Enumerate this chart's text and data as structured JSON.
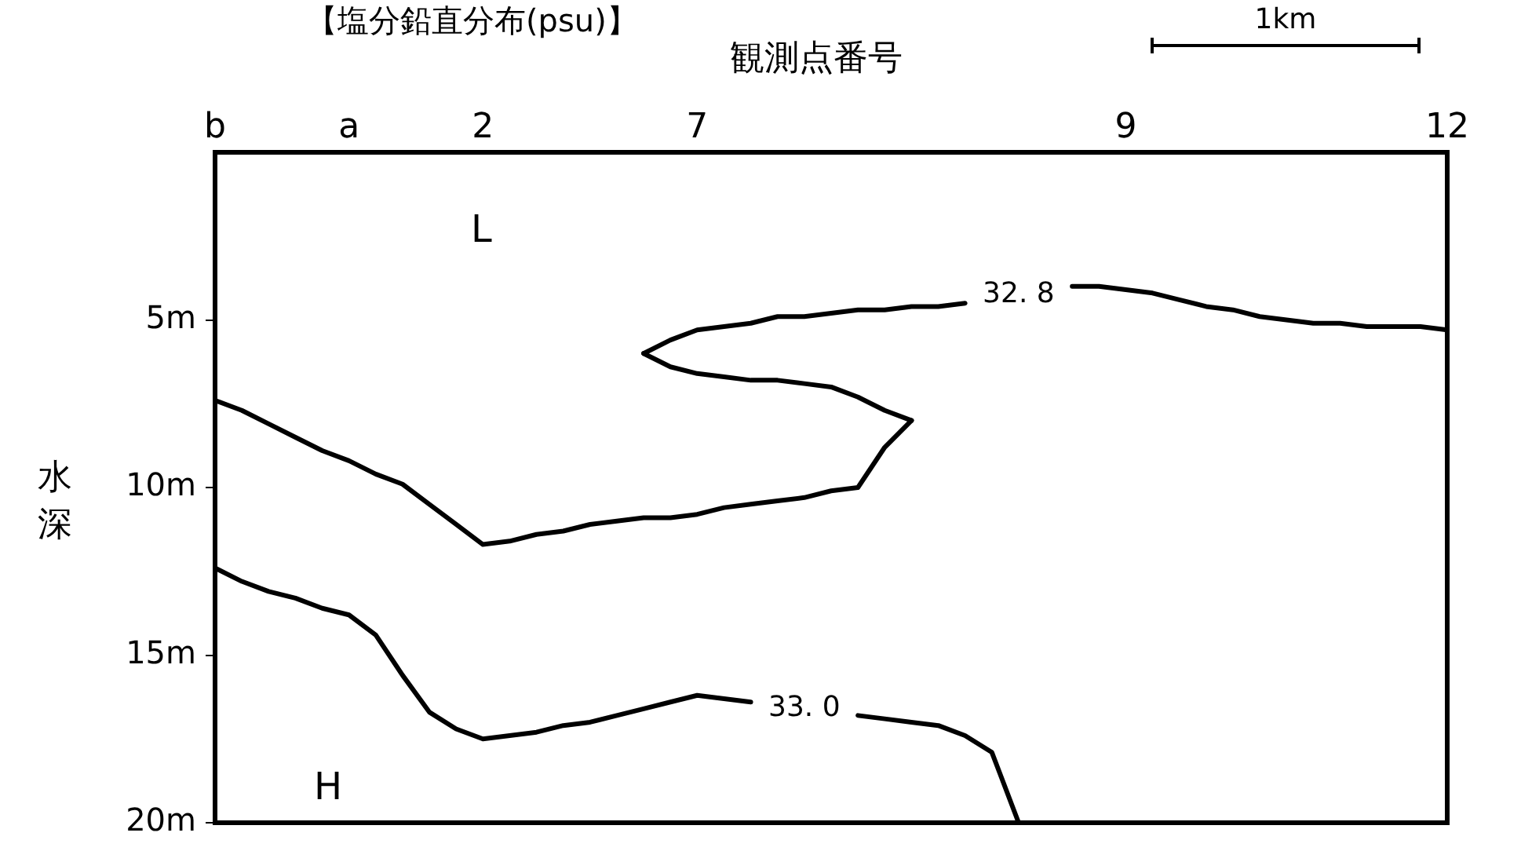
{
  "chart_data": {
    "type": "line",
    "title": "【塩分鉛直分布(psu)】",
    "xlabel": "観測点番号",
    "ylabel": "水深",
    "categories": [
      "b",
      null,
      null,
      null,
      null,
      "a",
      null,
      null,
      null,
      null,
      "2",
      null,
      null,
      null,
      null,
      null,
      null,
      null,
      "7",
      null,
      null,
      null,
      null,
      null,
      null,
      null,
      null,
      null,
      null,
      null,
      null,
      null,
      null,
      null,
      "9",
      null,
      null,
      null,
      null,
      null,
      null,
      null,
      null,
      null,
      null,
      null,
      "12"
    ],
    "ylim": [
      20,
      0
    ],
    "yticks": [
      {
        "value": 5,
        "label": "5m"
      },
      {
        "value": 10,
        "label": "10m"
      },
      {
        "value": 15,
        "label": "15m"
      },
      {
        "value": 20,
        "label": "20m"
      }
    ],
    "series": [
      {
        "color": "#000000",
        "values": [
          7.4,
          7.7,
          8.1,
          8.5,
          8.9,
          9.2,
          9.6,
          9.9,
          10.5,
          11.1,
          11.7,
          11.6,
          11.4,
          11.3,
          11.1,
          11.0,
          10.9,
          10.9,
          10.8,
          10.6,
          10.5,
          10.4,
          10.3,
          10.1,
          10.0,
          8.8,
          8.0,
          null,
          null,
          null,
          null,
          null,
          null,
          null,
          null,
          null,
          null,
          null,
          null,
          null,
          null,
          null,
          null,
          null,
          null,
          null,
          null
        ]
      },
      {
        "color": "#000000",
        "values": [
          null,
          null,
          null,
          null,
          null,
          null,
          null,
          null,
          null,
          null,
          null,
          null,
          null,
          null,
          null,
          null,
          6.0,
          6.4,
          6.6,
          6.7,
          6.8,
          6.8,
          6.9,
          7.0,
          7.3,
          7.7,
          8.0,
          null,
          null,
          null,
          null,
          null,
          null,
          null,
          null,
          null,
          null,
          null,
          null,
          null,
          null,
          null,
          null,
          null,
          null,
          null,
          null
        ]
      },
      {
        "name": "32. 8",
        "color": "#000000",
        "values": [
          null,
          null,
          null,
          null,
          null,
          null,
          null,
          null,
          null,
          null,
          null,
          null,
          null,
          null,
          null,
          null,
          6.0,
          5.6,
          5.3,
          5.2,
          5.1,
          4.9,
          4.9,
          4.8,
          4.7,
          4.7,
          4.6,
          4.6,
          4.5,
          null,
          null,
          null,
          4.0,
          4.0,
          4.1,
          4.2,
          4.4,
          4.6,
          4.7,
          4.9,
          5.0,
          5.1,
          5.1,
          5.2,
          5.2,
          5.2,
          5.3
        ]
      },
      {
        "name": "33. 0",
        "color": "#000000",
        "values": [
          12.4,
          12.8,
          13.1,
          13.3,
          13.6,
          13.8,
          14.4,
          15.6,
          16.7,
          17.2,
          17.5,
          17.4,
          17.3,
          17.1,
          17.0,
          16.8,
          16.6,
          16.4,
          16.2,
          16.3,
          16.4,
          null,
          null,
          null,
          16.8,
          16.9,
          17.0,
          17.1,
          17.4,
          17.9,
          20.0,
          null,
          null,
          null,
          null,
          null,
          null,
          null,
          null,
          null,
          null,
          null,
          null,
          null,
          null,
          null,
          null
        ]
      }
    ],
    "annotations": [
      "L",
      "H",
      "1km"
    ],
    "marker": "none",
    "line_style": "solid",
    "grid": false,
    "legend": false
  }
}
